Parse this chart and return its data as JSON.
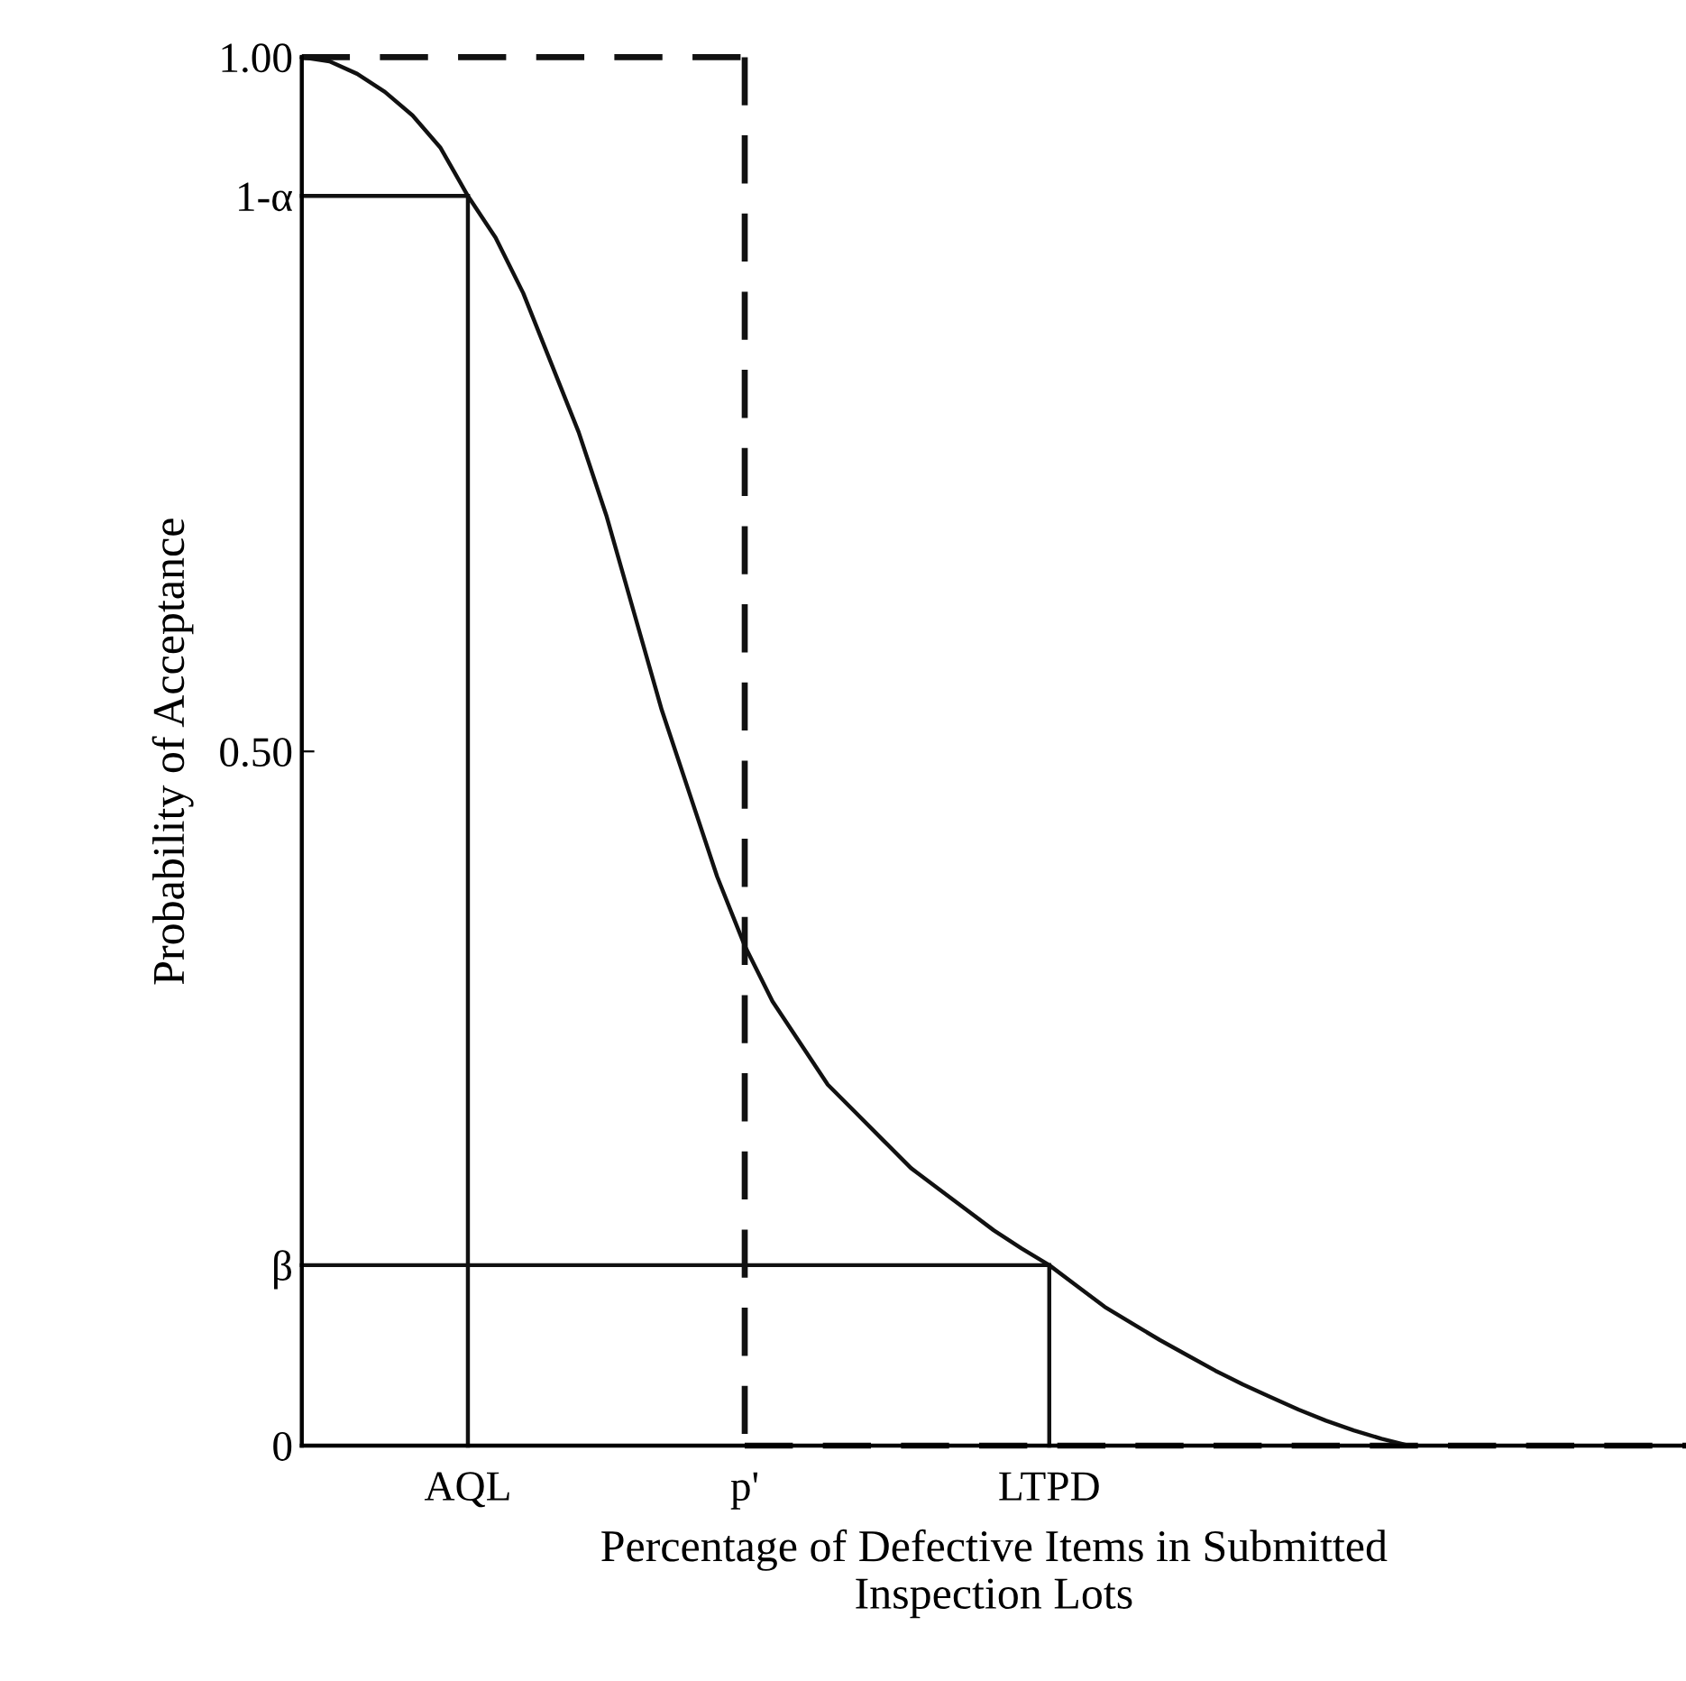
{
  "chart_data": {
    "type": "line",
    "xlabel": "Percentage of Defective Items in Submitted\nInspection Lots",
    "ylabel": "Probability of Acceptance",
    "categories": [
      null,
      null,
      null,
      null,
      null,
      null,
      "AQL",
      null,
      null,
      null,
      null,
      null,
      null,
      null,
      null,
      null,
      "p'",
      null,
      null,
      null,
      null,
      null,
      null,
      null,
      null,
      null,
      null,
      "LTPD",
      null,
      null,
      null,
      null,
      null,
      null,
      null,
      null,
      null,
      null,
      null,
      null,
      null,
      null,
      null,
      null,
      null,
      null,
      null,
      null,
      null,
      null,
      null
    ],
    "ylim": [
      0,
      1
    ],
    "yticks": [
      {
        "value": 0,
        "label": "0"
      },
      {
        "value": 0.13,
        "label": "β"
      },
      {
        "value": 0.5,
        "label": "0.50"
      },
      {
        "value": 0.9,
        "label": "1-α"
      },
      {
        "value": 1,
        "label": "1.00"
      }
    ],
    "grid": false,
    "legend": false,
    "marker": "none",
    "series": [
      {
        "color": "#111111",
        "line_style": "solid",
        "values": [
          1.0,
          0.997,
          0.988,
          0.975,
          0.958,
          0.935,
          0.9,
          0.87,
          0.83,
          0.78,
          0.73,
          0.67,
          0.6,
          0.53,
          0.47,
          0.41,
          0.36,
          0.32,
          0.29,
          0.26,
          0.24,
          0.22,
          0.2,
          0.185,
          0.17,
          0.155,
          0.142,
          0.13,
          0.115,
          0.1,
          0.088,
          0.076,
          0.065,
          0.054,
          0.044,
          0.035,
          0.026,
          0.018,
          0.011,
          0.005,
          0,
          null,
          null,
          null,
          null,
          null,
          null,
          null,
          null,
          null,
          null
        ]
      },
      {
        "color": "#111111",
        "line_style": "solid",
        "values": [
          0.9,
          0.9,
          0.9,
          0.9,
          0.9,
          0.9,
          0.9,
          null,
          null,
          null,
          null,
          null,
          null,
          null,
          null,
          null,
          null,
          null,
          null,
          null,
          null,
          null,
          null,
          null,
          null,
          null,
          null,
          null,
          null,
          null,
          null,
          null,
          null,
          null,
          null,
          null,
          null,
          null,
          null,
          null,
          null,
          null,
          null,
          null,
          null,
          null,
          null,
          null,
          null,
          null,
          null
        ]
      },
      {
        "color": "#111111",
        "line_style": "solid",
        "x": [
          "AQL",
          "AQL"
        ],
        "values": [
          0.9,
          0
        ]
      },
      {
        "color": "#111111",
        "line_style": "solid",
        "values": [
          0.13,
          0.13,
          0.13,
          0.13,
          0.13,
          0.13,
          0.13,
          0.13,
          0.13,
          0.13,
          0.13,
          0.13,
          0.13,
          0.13,
          0.13,
          0.13,
          0.13,
          0.13,
          0.13,
          0.13,
          0.13,
          0.13,
          0.13,
          0.13,
          0.13,
          0.13,
          0.13,
          0.13,
          null,
          null,
          null,
          null,
          null,
          null,
          null,
          null,
          null,
          null,
          null,
          null,
          null,
          null,
          null,
          null,
          null,
          null,
          null,
          null,
          null,
          null,
          null
        ]
      },
      {
        "color": "#111111",
        "line_style": "solid",
        "x": [
          "LTPD",
          "LTPD"
        ],
        "values": [
          0.13,
          0
        ]
      },
      {
        "color": "#111111",
        "line_style": "dashed",
        "values": [
          1,
          1,
          1,
          1,
          1,
          1,
          1,
          1,
          1,
          1,
          1,
          1,
          1,
          1,
          1,
          1,
          1,
          null,
          null,
          null,
          null,
          null,
          null,
          null,
          null,
          null,
          null,
          null,
          null,
          null,
          null,
          null,
          null,
          null,
          null,
          null,
          null,
          null,
          null,
          null,
          null,
          null,
          null,
          null,
          null,
          null,
          null,
          null,
          null,
          null,
          null
        ]
      },
      {
        "color": "#111111",
        "line_style": "dashed",
        "x": [
          "p'",
          "p'"
        ],
        "values": [
          1,
          0
        ]
      },
      {
        "color": "#111111",
        "line_style": "dashed",
        "values": [
          null,
          null,
          null,
          null,
          null,
          null,
          null,
          null,
          null,
          null,
          null,
          null,
          null,
          null,
          null,
          null,
          0,
          0,
          0,
          0,
          0,
          0,
          0,
          0,
          0,
          0,
          0,
          0,
          0,
          0,
          0,
          0,
          0,
          0,
          0,
          0,
          0,
          0,
          0,
          0,
          0,
          0,
          0,
          0,
          0,
          0,
          0,
          0,
          0,
          0,
          0
        ]
      }
    ]
  }
}
